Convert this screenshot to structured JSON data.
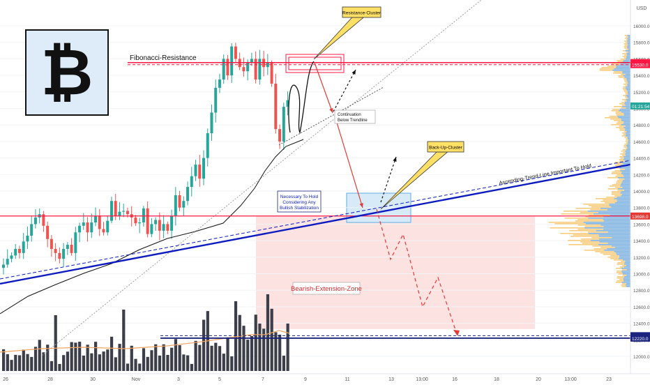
{
  "chart": {
    "currency": "USD",
    "logo_symbol": "₿",
    "price_labels": [
      {
        "text": "15555.0",
        "bg": "#ff1744",
        "value": 15555
      },
      {
        "text": "15530.0",
        "bg": "#ff1744",
        "value": 15530
      },
      {
        "text": "01:21:54",
        "bg": "#26a69a",
        "value": 15030
      },
      {
        "text": "13698.0",
        "bg": "#e53935",
        "value": 13698
      },
      {
        "text": "12250.0",
        "bg": "#1a237e",
        "value": 12250
      },
      {
        "text": "12220.0",
        "bg": "#1a237e",
        "value": 12220
      }
    ],
    "annotations": {
      "fib": "Fibonacci-Resistance",
      "resistance_cluster": "Resistance-Cluster",
      "backup_cluster": "Back-Up-Cluster",
      "continuation_1": "Continuation",
      "continuation_2": "Below Trendline",
      "hold_1": "Necessary To Hold",
      "hold_2": "Considering Any",
      "hold_3": "Bullish Stabilization",
      "trendline": "Ascending-Trend-Line Important To Hold",
      "bearish_zone": "Bearish-Extension-Zone"
    },
    "colors": {
      "up": "#26a69a",
      "down": "#ef5350",
      "resistance": "#ff1744",
      "trendline": "#0d1bbf",
      "support": "#1a237e",
      "volume": "#3c3f4a",
      "zone": "#fde2e2",
      "cluster": "#d6eaf8"
    }
  },
  "chart_data": {
    "type": "candlestick",
    "x_ticks": [
      "26",
      "28",
      "30",
      "Nov",
      "3",
      "5",
      "7",
      "9",
      "11",
      "13",
      "13:00",
      "16",
      "18",
      "20",
      "13:00",
      "23"
    ],
    "y_ticks": [
      12000,
      12200,
      12400,
      12600,
      12800,
      13000,
      13200,
      13400,
      13600,
      13800,
      14000,
      14200,
      14400,
      14600,
      14800,
      15000,
      15200,
      15400,
      15600,
      15800,
      16000
    ],
    "ylim": [
      11850,
      16200
    ],
    "levels": {
      "fibonacci_resistance": 15555,
      "resistance_lower": 15530,
      "horizontal_support": 13698,
      "support_upper": 12250,
      "support_lower": 12220
    },
    "candles_close": [
      13110,
      13180,
      13220,
      13300,
      13250,
      13390,
      13460,
      13600,
      13680,
      13720,
      13580,
      13420,
      13300,
      13250,
      13180,
      13300,
      13350,
      13250,
      13500,
      13580,
      13620,
      13500,
      13620,
      13700,
      13540,
      13500,
      13640,
      13880,
      13700,
      13750,
      13760,
      13720,
      13680,
      13610,
      13620,
      13790,
      13480,
      13600,
      13650,
      13520,
      13600,
      13520,
      13700,
      13950,
      13800,
      13880,
      14050,
      14180,
      14320,
      14150,
      14400,
      14700,
      14950,
      15250,
      15350,
      15600,
      15400,
      15750,
      15600,
      15500,
      15450,
      15550,
      15600,
      15350,
      15600,
      15500,
      15550,
      15300,
      14750,
      14600,
      15020,
      15100
    ]
  }
}
